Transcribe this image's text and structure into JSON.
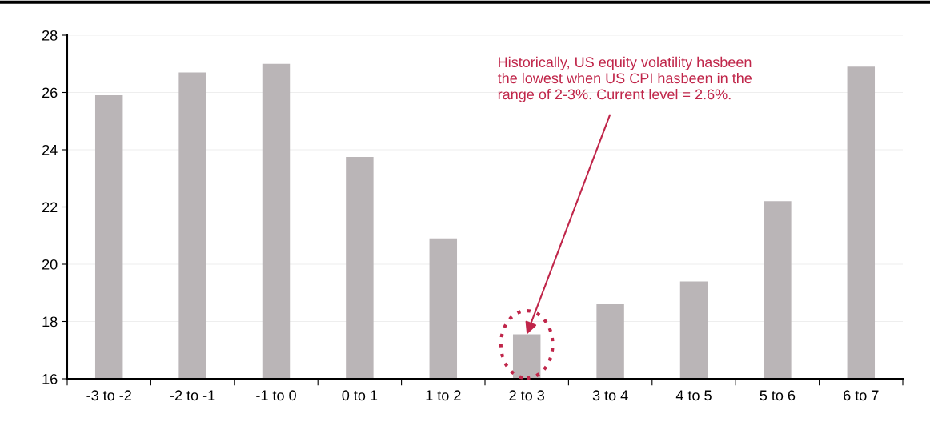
{
  "chart_data": {
    "type": "bar",
    "categories": [
      "-3 to -2",
      "-2 to -1",
      "-1 to 0",
      "0 to 1",
      "1 to 2",
      "2 to 3",
      "3 to 4",
      "4 to 5",
      "5 to 6",
      "6 to 7"
    ],
    "values": [
      25.9,
      26.7,
      27.0,
      23.75,
      20.9,
      17.55,
      18.6,
      19.4,
      22.2,
      26.9
    ],
    "color": "#bab5b7",
    "ylim": [
      16,
      28
    ],
    "yticks": [
      16,
      18,
      20,
      22,
      24,
      26,
      28
    ],
    "grid": "y",
    "annotations": [
      {
        "text": "Historically, US equity volatility hasbeen\nthe lowest when US CPI hasbeen in the\nrange of 2-3%. Current level = 2.6%.",
        "x": "2 to 3",
        "y": 17.55
      }
    ]
  }
}
